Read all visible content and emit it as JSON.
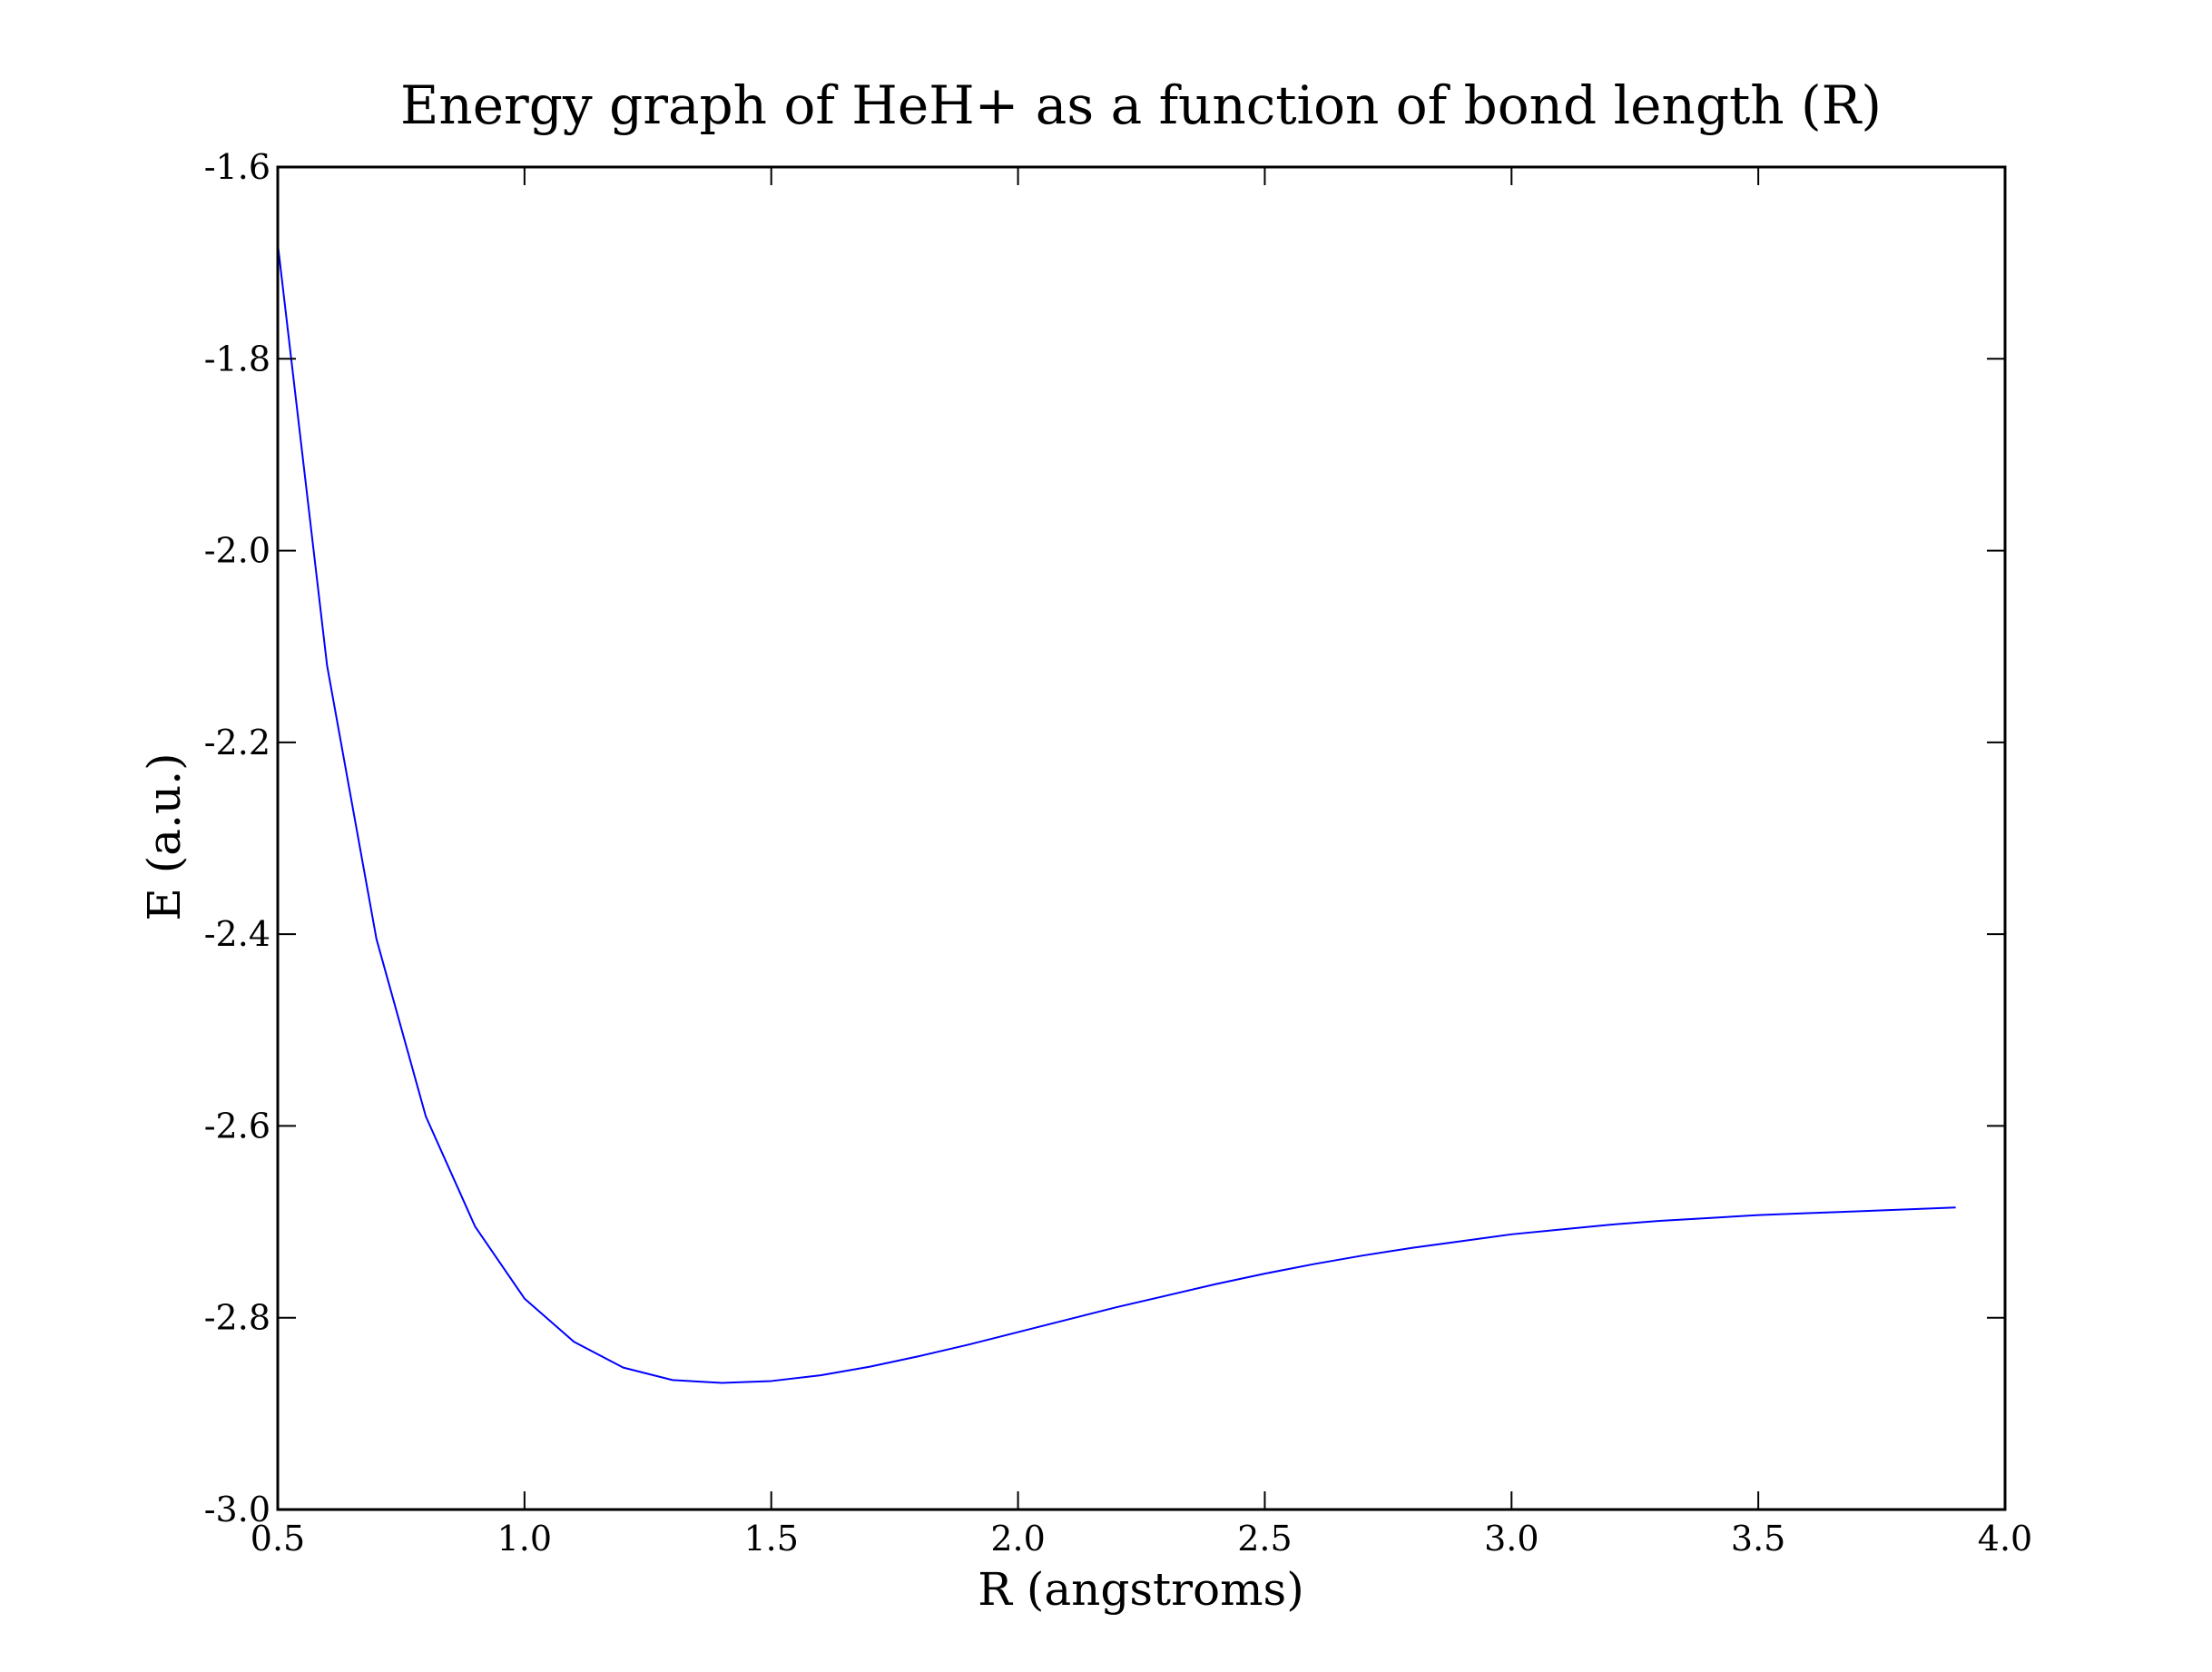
{
  "chart_data": {
    "type": "line",
    "title": "Energy graph of HeH+ as a function of bond length (R)",
    "xlabel": "R (angstroms)",
    "ylabel": "E (a.u.)",
    "xlim": [
      0.5,
      4.0
    ],
    "ylim": [
      -3.0,
      -1.6
    ],
    "x_ticks": [
      0.5,
      1.0,
      1.5,
      2.0,
      2.5,
      3.0,
      3.5,
      4.0
    ],
    "x_tick_labels": [
      "0.5",
      "1.0",
      "1.5",
      "2.0",
      "2.5",
      "3.0",
      "3.5",
      "4.0"
    ],
    "y_ticks": [
      -1.6,
      -1.8,
      -2.0,
      -2.2,
      -2.4,
      -2.6,
      -2.8,
      -3.0
    ],
    "y_tick_labels": [
      "-1.6",
      "-1.8",
      "-2.0",
      "-2.2",
      "-2.4",
      "-2.6",
      "-2.8",
      "-3.0"
    ],
    "grid": false,
    "series": [
      {
        "color": "#0000ff",
        "x": [
          0.5,
          0.6,
          0.7,
          0.8,
          0.9,
          1.0,
          1.1,
          1.2,
          1.3,
          1.4,
          1.5,
          1.6,
          1.7,
          1.8,
          1.9,
          2.0,
          2.1,
          2.2,
          2.3,
          2.4,
          2.5,
          2.6,
          2.7,
          2.8,
          2.9,
          3.0,
          3.1,
          3.2,
          3.3,
          3.4,
          3.5,
          3.6,
          3.7,
          3.8,
          3.9
        ],
        "y": [
          -1.68,
          -2.12,
          -2.405,
          -2.59,
          -2.705,
          -2.78,
          -2.825,
          -2.852,
          -2.865,
          -2.868,
          -2.866,
          -2.86,
          -2.851,
          -2.84,
          -2.828,
          -2.815,
          -2.802,
          -2.789,
          -2.777,
          -2.765,
          -2.754,
          -2.744,
          -2.735,
          -2.727,
          -2.72,
          -2.713,
          -2.708,
          -2.703,
          -2.699,
          -2.696,
          -2.693,
          -2.691,
          -2.689,
          -2.687,
          -2.685
        ]
      }
    ]
  }
}
